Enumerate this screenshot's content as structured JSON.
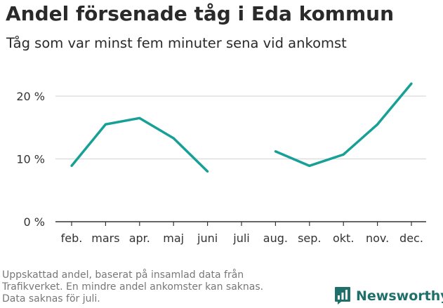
{
  "title": "Andel försenade tåg i Eda kommun",
  "subtitle": "Tåg som var minst fem minuter sena vid ankomst",
  "footnote": [
    "Uppskattad andel, baserat på insamlad data från",
    "Trafikverket. En mindre andel ankomster kan saknas.",
    "Data saknas för juli."
  ],
  "brand": {
    "name": "Newsworthy",
    "color": "#1f6f6b"
  },
  "chart_data": {
    "type": "line",
    "categories": [
      "feb.",
      "mars",
      "apr.",
      "maj",
      "juni",
      "juli",
      "aug.",
      "sep.",
      "okt.",
      "nov.",
      "dec."
    ],
    "series": [
      {
        "values": [
          8.9,
          15.5,
          16.5,
          13.3,
          8.0,
          null,
          11.2,
          8.9,
          10.7,
          15.5,
          22.0
        ]
      }
    ],
    "y_ticks": [
      0,
      10,
      20
    ],
    "y_tick_labels": [
      "0 %",
      "10 %",
      "20 %"
    ],
    "ylim": [
      0,
      22
    ],
    "grid": true,
    "line_color": "#16a096",
    "grid_color": "#d9d9d9",
    "axis_color": "#333333"
  }
}
